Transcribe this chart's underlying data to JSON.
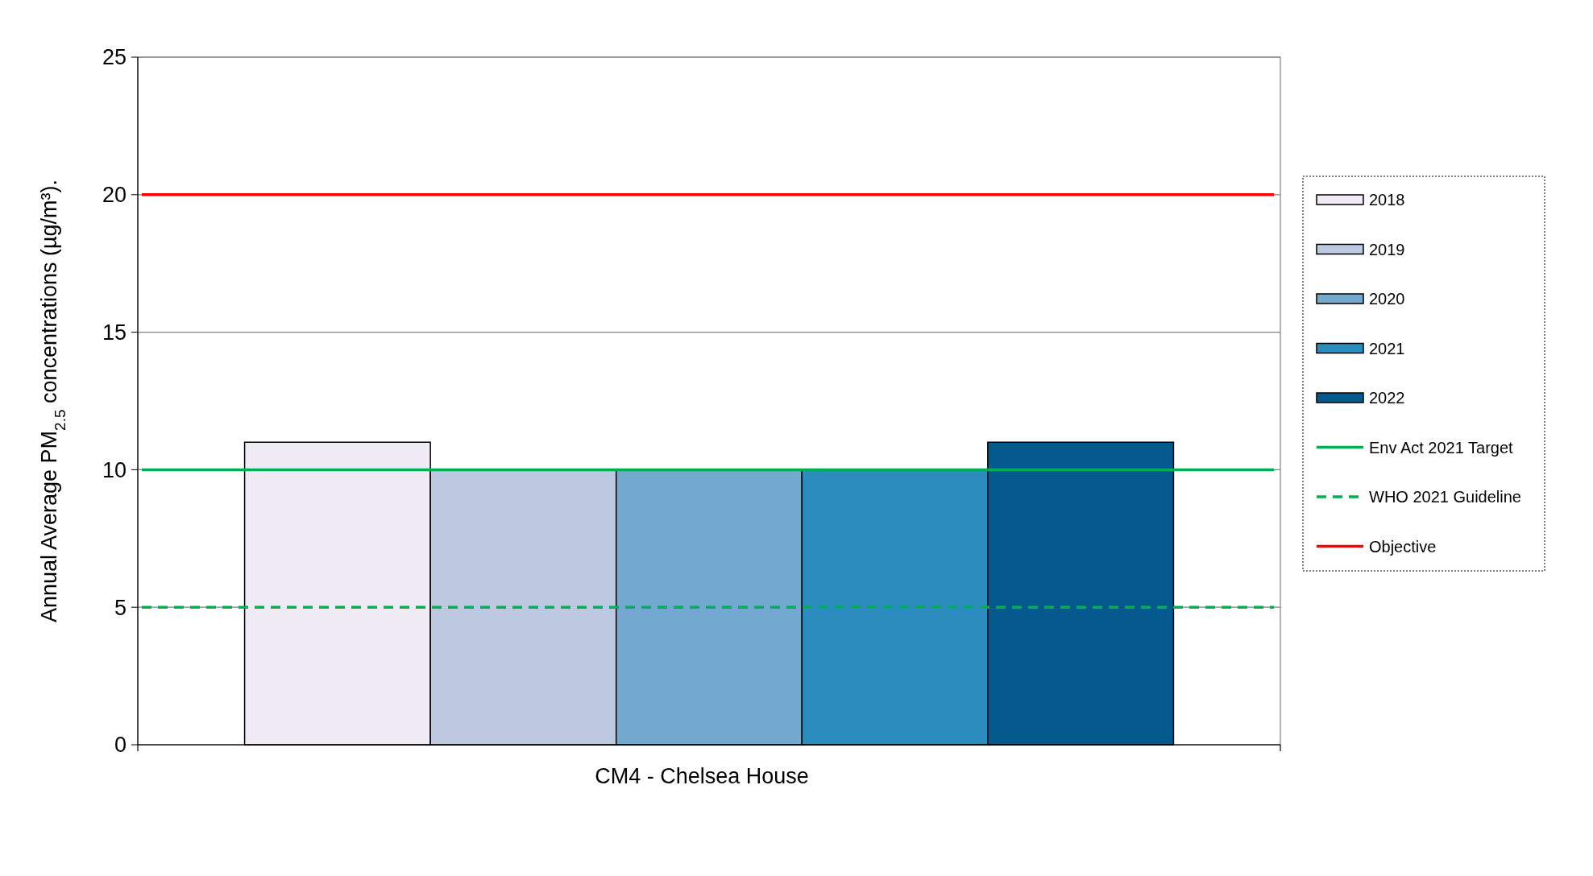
{
  "chart_data": {
    "type": "bar",
    "categories": [
      "CM4 - Chelsea House"
    ],
    "ylabel": "Annual Average PM$_{2.5}$ concentrations (µg/m³).",
    "series": [
      {
        "name": "2018",
        "color": "#efebf4",
        "values": [
          11
        ]
      },
      {
        "name": "2019",
        "color": "#bdc9e1",
        "values": [
          10
        ]
      },
      {
        "name": "2020",
        "color": "#74a9cf",
        "values": [
          10
        ]
      },
      {
        "name": "2021",
        "color": "#2b8cbe",
        "values": [
          10
        ]
      },
      {
        "name": "2022",
        "color": "#045a8d",
        "values": [
          11
        ]
      }
    ],
    "ylim": [
      0,
      25
    ],
    "yticks": [
      0,
      5,
      10,
      15,
      20,
      25
    ],
    "grid": "y",
    "legend": "right",
    "ref_lines": [
      {
        "axis": "y",
        "value": 10,
        "label": "Env Act 2021 Target",
        "color": "#00b050",
        "line_style": "solid"
      },
      {
        "axis": "y",
        "value": 5,
        "label": "WHO 2021 Guideline",
        "color": "#00b050",
        "line_style": "dashed"
      },
      {
        "axis": "y",
        "value": 20,
        "label": "Objective",
        "color": "#ff0000",
        "line_style": "solid"
      }
    ]
  }
}
